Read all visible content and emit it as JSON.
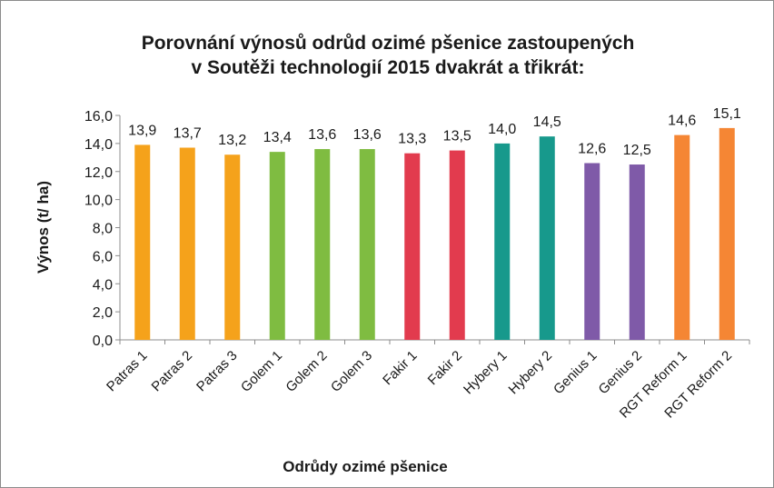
{
  "chart_data": {
    "type": "bar",
    "title": [
      "Porovnání výnosů odrůd ozimé pšenice zastoupených",
      "v Soutěži technologií 2015 dvakrát a třikrát:"
    ],
    "xlabel": "Odrůdy ozimé pšenice",
    "ylabel": "Výnos (t/ ha)",
    "ylim": [
      0,
      16
    ],
    "ytick_labels": [
      "0,0",
      "2,0",
      "4,0",
      "6,0",
      "8,0",
      "10,0",
      "12,0",
      "14,0",
      "16,0"
    ],
    "categories": [
      "Patras 1",
      "Patras 2",
      "Patras 3",
      "Golem 1",
      "Golem 2",
      "Golem 3",
      "Fakir 1",
      "Fakir 2",
      "Hybery 1",
      "Hybery 2",
      "Genius 1",
      "Genius 2",
      "RGT Reform 1",
      "RGT Reform 2"
    ],
    "values": [
      13.9,
      13.7,
      13.2,
      13.4,
      13.6,
      13.6,
      13.3,
      13.5,
      14.0,
      14.5,
      12.6,
      12.5,
      14.6,
      15.1
    ],
    "data_labels": [
      "13,9",
      "13,7",
      "13,2",
      "13,4",
      "13,6",
      "13,6",
      "13,3",
      "13,5",
      "14,0",
      "14,5",
      "12,6",
      "12,5",
      "14,6",
      "15,1"
    ],
    "colors": [
      "#f5a21b",
      "#f5a21b",
      "#f5a21b",
      "#7fbc41",
      "#7fbc41",
      "#7fbc41",
      "#e23b4e",
      "#e23b4e",
      "#17998c",
      "#17998c",
      "#7f5aa8",
      "#7f5aa8",
      "#f58634",
      "#f58634"
    ],
    "grid": false,
    "legend": "none"
  }
}
